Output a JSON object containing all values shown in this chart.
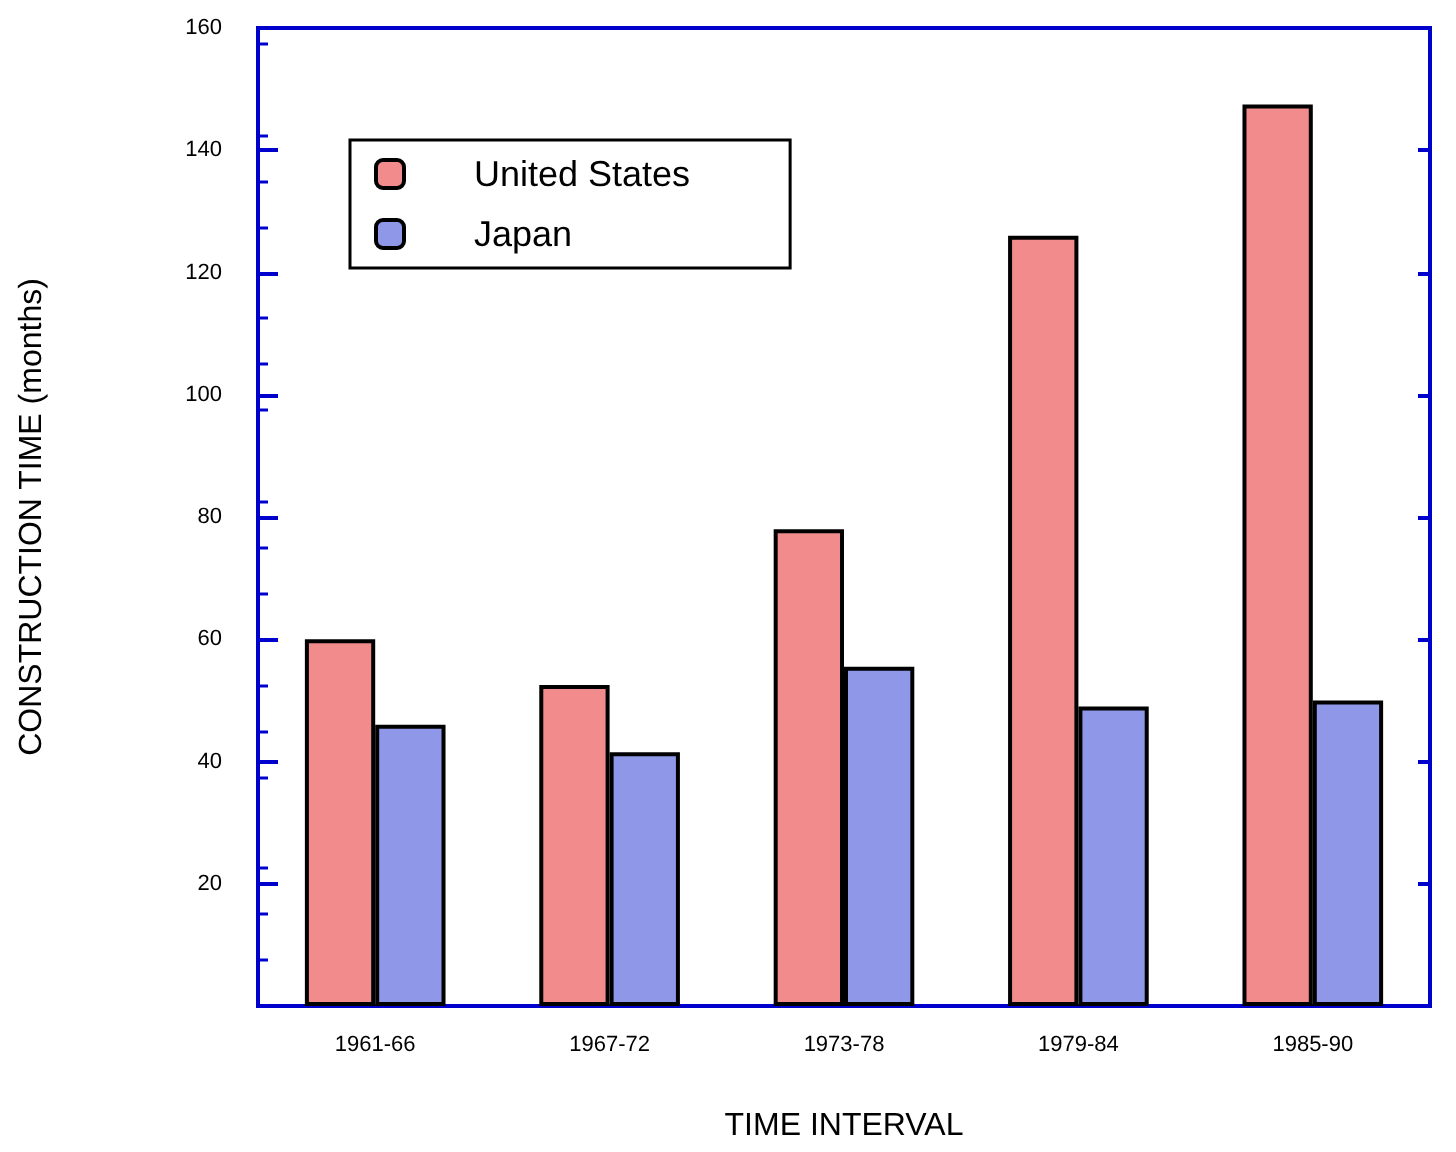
{
  "chart_data": {
    "type": "bar",
    "xlabel": "TIME INTERVAL",
    "ylabel": "CONSTRUCTION TIME (months)",
    "categories": [
      "1961-66",
      "1967-72",
      "1973-78",
      "1979-84",
      "1985-90"
    ],
    "series": [
      {
        "name": "United States",
        "color": "#f28b8b",
        "values": [
          60,
          52.5,
          78,
          126,
          147.5
        ]
      },
      {
        "name": "Japan",
        "color": "#8f98e8",
        "values": [
          46,
          41.5,
          55.5,
          49,
          50
        ]
      }
    ],
    "ylim": [
      0,
      160
    ],
    "yticks": [
      {
        "value": 0,
        "label": null
      },
      20,
      40,
      60,
      80,
      100,
      120,
      140,
      160
    ],
    "legend": "top left",
    "grid": false
  }
}
